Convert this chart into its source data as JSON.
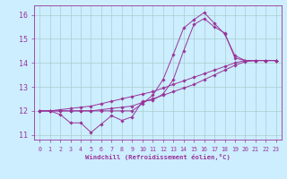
{
  "xlabel": "Windchill (Refroidissement éolien,°C)",
  "background_color": "#cceeff",
  "grid_color": "#aacccc",
  "line_color": "#993399",
  "xlim": [
    -0.5,
    23.5
  ],
  "ylim": [
    10.8,
    16.4
  ],
  "xticks": [
    0,
    1,
    2,
    3,
    4,
    5,
    6,
    7,
    8,
    9,
    10,
    11,
    12,
    13,
    14,
    15,
    16,
    17,
    18,
    19,
    20,
    21,
    22,
    23
  ],
  "yticks": [
    11,
    12,
    13,
    14,
    15,
    16
  ],
  "series": [
    [
      12.0,
      12.0,
      12.05,
      12.1,
      12.15,
      12.2,
      12.3,
      12.4,
      12.5,
      12.6,
      12.7,
      12.8,
      12.95,
      13.1,
      13.25,
      13.4,
      13.55,
      13.7,
      13.85,
      14.0,
      14.1,
      14.1,
      14.1,
      14.1
    ],
    [
      12.0,
      12.0,
      12.0,
      12.0,
      12.0,
      12.0,
      12.05,
      12.1,
      12.15,
      12.2,
      12.35,
      12.5,
      12.65,
      12.8,
      12.95,
      13.1,
      13.3,
      13.5,
      13.7,
      13.9,
      14.05,
      14.1,
      14.1,
      14.1
    ],
    [
      12.0,
      12.0,
      11.85,
      11.5,
      11.5,
      11.1,
      11.45,
      11.8,
      11.6,
      11.75,
      12.4,
      12.45,
      12.7,
      13.3,
      14.5,
      15.6,
      15.85,
      15.5,
      15.25,
      14.2,
      14.1,
      14.1,
      14.1,
      14.1
    ],
    [
      12.0,
      12.0,
      12.0,
      12.0,
      12.0,
      12.0,
      12.0,
      12.0,
      12.0,
      12.0,
      12.3,
      12.65,
      13.3,
      14.35,
      15.45,
      15.8,
      16.1,
      15.65,
      15.2,
      14.3,
      14.1,
      14.1,
      14.1,
      14.1
    ]
  ]
}
